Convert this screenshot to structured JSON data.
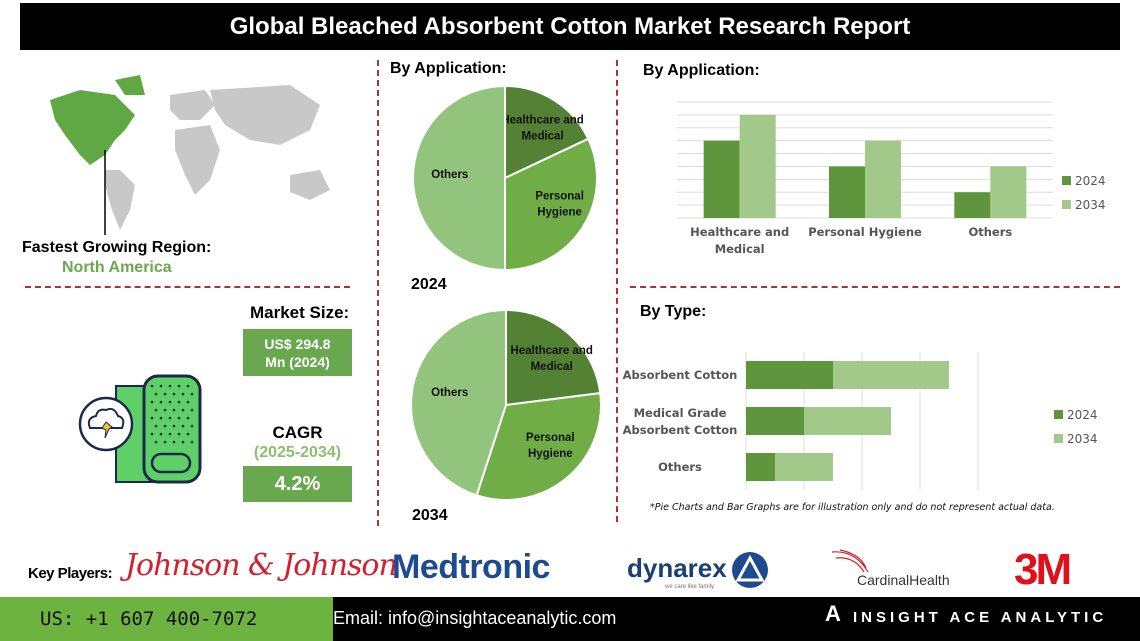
{
  "title": "Global Bleached Absorbent Cotton Market Research Report",
  "region": {
    "label": "Fastest Growing Region:",
    "value": "North America"
  },
  "market_size": {
    "label": "Market Size:",
    "value_line1": "US$ 294.8",
    "value_line2": "Mn (2024)"
  },
  "cagr": {
    "label": "CAGR",
    "period": "(2025-2034)",
    "value": "4.2%"
  },
  "colors": {
    "dark_green": "#5b8f3a",
    "mid_green": "#70ad47",
    "light_green": "#a3c98a",
    "accent_red": "#a33333"
  },
  "chart_data": [
    {
      "type": "pie",
      "title": "By Application:",
      "year": "2024",
      "slices": [
        {
          "label": "Healthcare and Medical",
          "value": 18,
          "color": "#548235"
        },
        {
          "label": "Personal Hygiene",
          "value": 32,
          "color": "#70ad47"
        },
        {
          "label": "Others",
          "value": 50,
          "color": "#93c47d"
        }
      ]
    },
    {
      "type": "pie",
      "year": "2034",
      "slices": [
        {
          "label": "Healthcare and Medical",
          "value": 23,
          "color": "#548235"
        },
        {
          "label": "Personal Hygiene",
          "value": 32,
          "color": "#70ad47"
        },
        {
          "label": "Others",
          "value": 45,
          "color": "#93c47d"
        }
      ]
    },
    {
      "type": "bar",
      "title": "By Application:",
      "categories": [
        "Healthcare and Medical",
        "Personal Hygiene",
        "Others"
      ],
      "series": [
        {
          "name": "2024",
          "values": [
            6,
            4,
            2
          ],
          "color": "#5f963d"
        },
        {
          "name": "2034",
          "values": [
            8,
            6,
            4
          ],
          "color": "#a3c98a"
        }
      ],
      "ylim": [
        0,
        9
      ],
      "grid": true,
      "legend": "right"
    },
    {
      "type": "bar",
      "orientation": "horizontal",
      "stacked": true,
      "title": "By Type:",
      "categories": [
        "Absorbent Cotton",
        "Medical Grade Absorbent Cotton",
        "Others"
      ],
      "series": [
        {
          "name": "2024",
          "values": [
            1.5,
            1.0,
            0.5
          ],
          "color": "#5f963d"
        },
        {
          "name": "2034",
          "values": [
            2.0,
            1.5,
            1.0
          ],
          "color": "#a3c98a"
        }
      ],
      "xlim": [
        0,
        4
      ],
      "grid": true,
      "legend": "right"
    }
  ],
  "note": "*Pie Charts and Bar Graphs are for illustration only and do not represent actual data.",
  "key_players": {
    "label": "Key Players:",
    "companies": [
      "Johnson & Johnson",
      "Medtronic",
      "dynarex",
      "CardinalHealth",
      "3M"
    ],
    "dynarex_tagline": "we care like family"
  },
  "footer": {
    "phone": "US: +1 607 400-7072",
    "email": "Email: info@insightaceanalytic.com",
    "brand": "INSIGHT ACE ANALYTIC"
  }
}
